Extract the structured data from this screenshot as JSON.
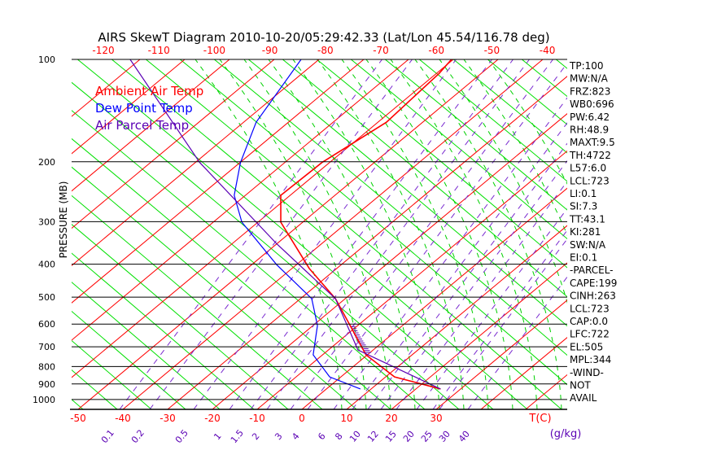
{
  "chart_data": {
    "type": "line",
    "subtype": "skew-t",
    "title": "AIRS SkewT Diagram 2010-10-20/05:29:42.33 (Lat/Lon 45.54/116.78 deg)",
    "ylabel": "PRESSURE (MB)",
    "xlabel": "T(C)",
    "mixing_ratio_label": "(g/kg)",
    "pressure_ticks": [
      100,
      200,
      300,
      400,
      500,
      600,
      700,
      800,
      900,
      1000
    ],
    "bottom_temp_ticks": [
      -50,
      -40,
      -30,
      -20,
      -10,
      0,
      10,
      20,
      30
    ],
    "top_temp_ticks": [
      -120,
      -110,
      -100,
      -90,
      -80,
      -70,
      -60,
      -50,
      -40
    ],
    "mixing_ratio_ticks": [
      "0.1",
      "0.2",
      "0.5",
      "1",
      "1.5",
      "2",
      "3",
      "4",
      "6",
      "8",
      "10",
      "12",
      "15",
      "20",
      "25",
      "30",
      "40"
    ],
    "legend": [
      {
        "name": "Ambient Air Temp",
        "color": "#ff0000"
      },
      {
        "name": "Dew Point Temp",
        "color": "#0000ff"
      },
      {
        "name": "Air Parcel Temp",
        "color": "#5a00b4"
      }
    ],
    "series": [
      {
        "name": "Ambient Air Temp",
        "color": "#ff0000",
        "pressure": [
          931,
          858,
          739,
          606,
          505,
          412,
          301,
          251,
          201,
          153,
          110,
          100
        ],
        "temperature": [
          25.5,
          12.0,
          -0.3,
          -11.7,
          -22.2,
          -36.1,
          -54.9,
          -62.1,
          -61.7,
          -58.1,
          -59.4,
          -60.4
        ]
      },
      {
        "name": "Dew Point Temp",
        "color": "#0000ff",
        "pressure": [
          931,
          858,
          739,
          606,
          505,
          401,
          301,
          251,
          201,
          153,
          100
        ],
        "temperature": [
          7.6,
          -2.5,
          -12.1,
          -19.0,
          -27.5,
          -44.5,
          -63.6,
          -72.5,
          -79.9,
          -87.2,
          -94.0
        ]
      },
      {
        "name": "Air Parcel Temp",
        "color": "#5a00b4",
        "pressure": [
          931,
          715,
          505,
          349,
          201,
          100
        ],
        "temperature": [
          25.5,
          -3.4,
          -22.2,
          -49.9,
          -89.0,
          -132.2
        ]
      }
    ],
    "indices": [
      "TP:100",
      "MW:N/A",
      "FRZ:823",
      "WB0:696",
      "PW:6.42",
      "RH:48.9",
      "MAXT:9.5",
      "TH:4722",
      "L57:6.0",
      "LCL:723",
      "LI:0.1",
      "SI:7.3",
      "TT:43.1",
      "KI:281",
      "SW:N/A",
      "EI:0.1",
      "-PARCEL-",
      "CAPE:199",
      "CINH:263",
      "LCL:723",
      "CAP:0.0",
      "LFC:722",
      "EL:505",
      "MPL:344",
      "-WIND-",
      "NOT",
      "AVAIL"
    ],
    "colors": {
      "isotherm": "#ff0000",
      "dry_adiabat": "#00e000",
      "moist_adiabat": "#00d000",
      "mixing_ratio": "#7a2bd0",
      "isobar": "#000000"
    }
  }
}
